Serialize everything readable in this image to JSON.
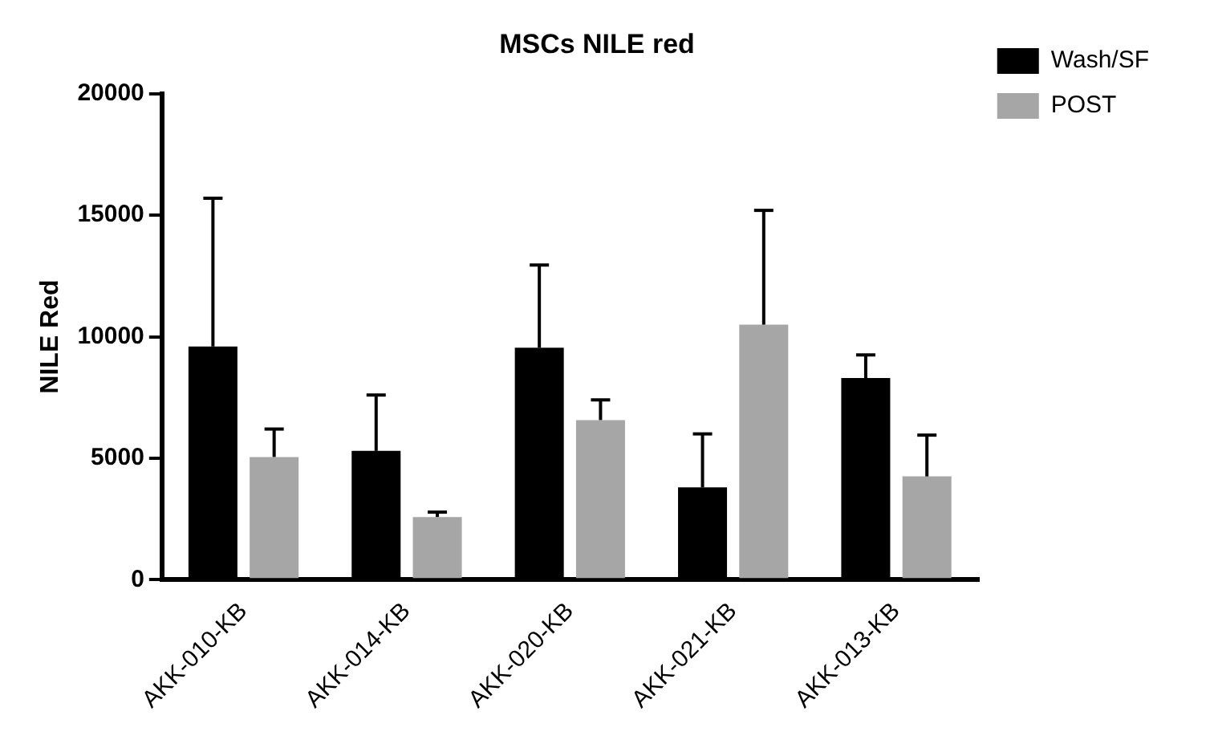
{
  "chart_data": {
    "type": "bar",
    "title": "MSCs NILE red",
    "ylabel": "NILE Red",
    "categories": [
      "AKK-010-KB",
      "AKK-014-KB",
      "AKK-020-KB",
      "AKK-021-KB",
      "AKK-013-KB"
    ],
    "series": [
      {
        "name": "Wash/SF",
        "color": "#000000",
        "values": [
          9600,
          5300,
          9550,
          3800,
          8300
        ],
        "errors": [
          [
            9600,
            15700
          ],
          [
            5300,
            7600
          ],
          [
            9550,
            12950
          ],
          [
            3800,
            6000
          ],
          [
            8300,
            9250
          ]
        ]
      },
      {
        "name": "POST",
        "color": "#a6a6a6",
        "values": [
          5050,
          2580,
          6570,
          10500,
          4250
        ],
        "errors": [
          [
            5050,
            6200
          ],
          [
            2580,
            2780
          ],
          [
            6570,
            7400
          ],
          [
            10500,
            15200
          ],
          [
            4250,
            5950
          ]
        ]
      }
    ],
    "ylim": [
      0,
      20000
    ],
    "yticks": [
      0,
      5000,
      10000,
      15000,
      20000
    ],
    "grid": false,
    "legend": "top right"
  }
}
